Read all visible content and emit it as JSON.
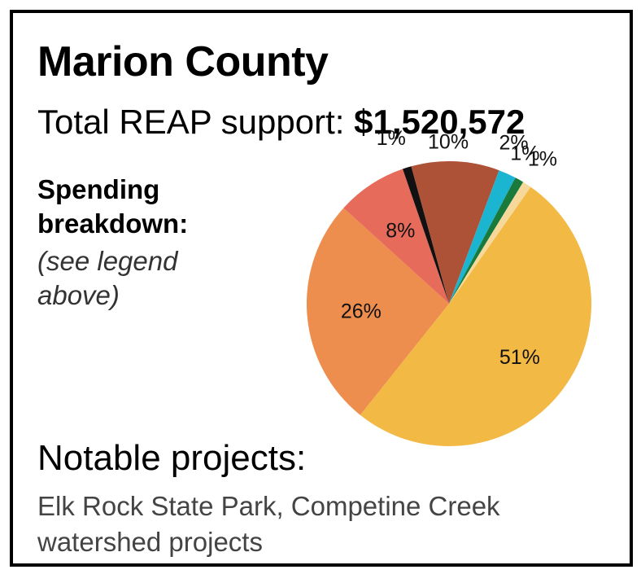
{
  "card": {
    "title": "Marion County",
    "total_label": "Total REAP support:",
    "total_value": "$1,520,572",
    "breakdown_heading": "Spending breakdown:",
    "breakdown_note": "(see legend above)",
    "notable_heading": "Notable projects:",
    "notable_body": "Elk Rock State Park, Competine Creek watershed projects"
  },
  "chart_data": {
    "type": "pie",
    "title": "",
    "slices": [
      {
        "label": "51%",
        "value": 51,
        "color": "#F2B944"
      },
      {
        "label": "26%",
        "value": 26,
        "color": "#EE8E4E"
      },
      {
        "label": "8%",
        "value": 8,
        "color": "#E76B5A"
      },
      {
        "label": "1%",
        "value": 1,
        "color": "#111111"
      },
      {
        "label": "10%",
        "value": 10,
        "color": "#AE5237"
      },
      {
        "label": "2%",
        "value": 2,
        "color": "#1CB5D1"
      },
      {
        "label": "1%",
        "value": 1,
        "color": "#1A7A3C"
      },
      {
        "label": "1%",
        "value": 1,
        "color": "#F6D99A"
      }
    ]
  }
}
